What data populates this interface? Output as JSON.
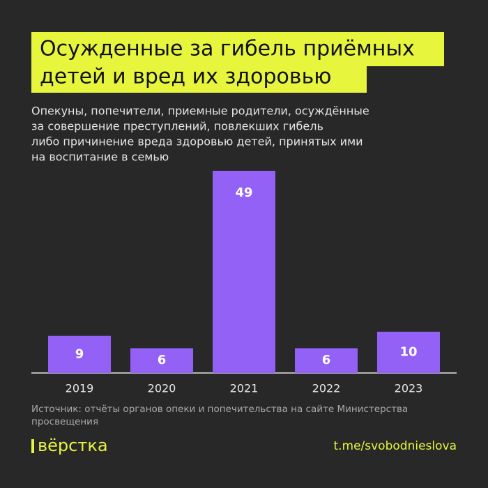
{
  "chart_data": {
    "type": "bar",
    "title": [
      "Осужденные за гибель приёмных",
      "детей и вред их здоровью"
    ],
    "subtitle": [
      "Опекуны, попечители, приемные родители, осуждённые",
      "за совершение преступлений, повлекших гибель",
      "либо причинение вреда здоровью детей, принятых ими",
      "на воспитание в семью"
    ],
    "categories": [
      "2019",
      "2020",
      "2021",
      "2022",
      "2023"
    ],
    "values": [
      9,
      6,
      49,
      6,
      10
    ],
    "color": "#9461f7",
    "source": [
      "Источник: отчёты органов опеки и попечительства на сайте Министерства",
      "просвещения"
    ],
    "logo": "вёрстка",
    "link": "t.me/svobodnieslova"
  }
}
